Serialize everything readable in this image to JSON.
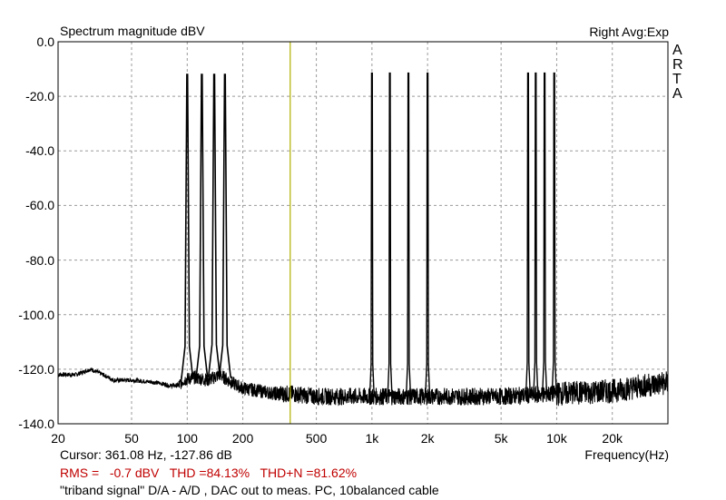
{
  "window": {
    "logo_letters": [
      "A",
      "R",
      "T",
      "A"
    ]
  },
  "chart_data": {
    "type": "line",
    "title": "Spectrum magnitude dBV",
    "mode_label": "Right Avg:Exp",
    "xlabel": "Frequency(Hz)",
    "ylabel": "",
    "x_scale": "log",
    "xlim": [
      20,
      40000
    ],
    "ylim": [
      -140,
      0
    ],
    "grid": true,
    "legend": "none",
    "y_ticks": [
      "0.0",
      "-20.0",
      "-40.0",
      "-60.0",
      "-80.0",
      "-100.0",
      "-120.0",
      "-140.0"
    ],
    "y_tick_values": [
      0,
      -20,
      -40,
      -60,
      -80,
      -100,
      -120,
      -140
    ],
    "x_ticks": [
      "20",
      "50",
      "100",
      "200",
      "500",
      "1k",
      "2k",
      "5k",
      "10k",
      "20k"
    ],
    "x_tick_values": [
      20,
      50,
      100,
      200,
      500,
      1000,
      2000,
      5000,
      10000,
      20000
    ],
    "cursor": {
      "x": 361.08,
      "y": -127.86
    },
    "peaks": {
      "x": [
        100,
        120,
        140,
        160,
        1000,
        1250,
        1575,
        2000,
        7000,
        7700,
        8600,
        9700
      ],
      "y": [
        -12,
        -12,
        -12,
        -12,
        -11.5,
        -11.5,
        -11.5,
        -11.5,
        -11.5,
        -11.5,
        -11.5,
        -11.5
      ]
    },
    "noise_floor": {
      "x": [
        20,
        25,
        30,
        35,
        40,
        50,
        60,
        70,
        80,
        90,
        95,
        110,
        130,
        150,
        175,
        200,
        250,
        300,
        361,
        500,
        700,
        1000,
        2000,
        5000,
        10000,
        20000,
        30000,
        40000
      ],
      "y": [
        -122,
        -122,
        -120,
        -122,
        -124,
        -124,
        -124.5,
        -125,
        -126,
        -126,
        -124,
        -123,
        -124,
        -122,
        -125,
        -127,
        -128,
        -129,
        -129,
        -130,
        -130,
        -130,
        -130,
        -130,
        -129,
        -128,
        -126,
        -125
      ]
    },
    "colors": {
      "trace": "#000000",
      "cursor": "#b0b000",
      "grid": "#9a9a9a",
      "readout_red": "#c00000"
    }
  },
  "readout": {
    "cursor": "Cursor: 361.08 Hz, -127.86 dB",
    "rms": "RMS =   -0.7 dBV   THD =84.13%   THD+N =81.62%",
    "note": "\"triband signal\" D/A - A/D , DAC out to meas. PC, 10balanced cable"
  }
}
